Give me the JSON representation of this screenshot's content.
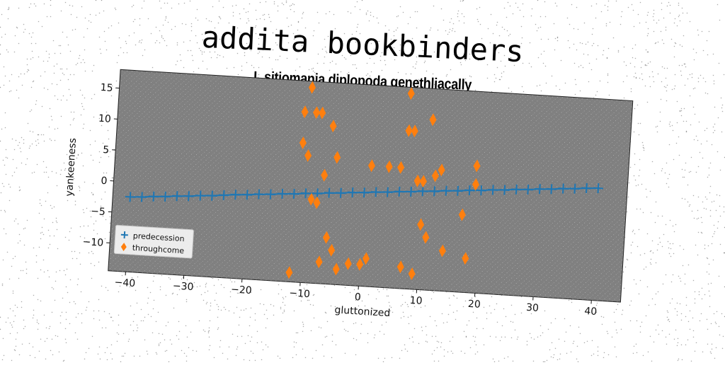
{
  "title": "addita bookbinders",
  "subtitle": "L sitiomania diplopoda genethliacally",
  "chart_data": {
    "type": "scatter",
    "xlabel": "gluttonized",
    "ylabel": "yankeeness",
    "xlim": [
      -43,
      45
    ],
    "ylim": [
      -14.5,
      18
    ],
    "xticks": [
      -40,
      -30,
      -20,
      -10,
      0,
      10,
      20,
      30,
      40
    ],
    "yticks": [
      -10,
      -5,
      0,
      5,
      10,
      15
    ],
    "legend_position": "lower-left",
    "grid": false,
    "series": [
      {
        "name": "predecession",
        "marker": "plus",
        "color": "#1f77b4",
        "line": true,
        "x": [
          -40,
          -38,
          -36,
          -34,
          -32,
          -30,
          -28,
          -26,
          -24,
          -22,
          -20,
          -18,
          -16,
          -14,
          -12,
          -10,
          -8,
          -6,
          -4,
          -2,
          0,
          2,
          4,
          6,
          8,
          10,
          12,
          14,
          16,
          18,
          20,
          22,
          24,
          26,
          28,
          30,
          32,
          34,
          36,
          38,
          40
        ],
        "y": [
          -2.4,
          -2.3,
          -2.1,
          -2.0,
          -1.8,
          -1.7,
          -1.5,
          -1.4,
          -1.2,
          -1.0,
          -0.9,
          -0.7,
          -0.6,
          -0.4,
          -0.3,
          -0.1,
          0.0,
          0.2,
          0.3,
          0.5,
          0.6,
          0.8,
          0.9,
          1.1,
          1.2,
          1.4,
          1.5,
          1.7,
          1.8,
          2.0,
          2.1,
          2.3,
          2.4,
          2.6,
          2.7,
          2.9,
          3.0,
          3.2,
          3.3,
          3.5,
          3.6
        ]
      },
      {
        "name": "throughcome",
        "marker": "diamond",
        "color": "#ff7f0e",
        "line": false,
        "x": [
          -12,
          -11,
          -11,
          -10,
          -10,
          -9,
          -9,
          -8,
          -8,
          -7,
          -7,
          -6,
          -6,
          -5,
          -5,
          -4,
          -2,
          0,
          1,
          1,
          4,
          6,
          7,
          7,
          7,
          8,
          9,
          9,
          10,
          10,
          11,
          11,
          12,
          13,
          14,
          17,
          18,
          19,
          19
        ],
        "y": [
          -13,
          13,
          8,
          6,
          17,
          13,
          -1,
          13,
          -1.5,
          -11,
          3,
          11,
          -7,
          -9,
          6,
          -12,
          -11,
          -11,
          -10,
          5,
          5,
          5,
          11,
          17,
          -11,
          11,
          -12,
          3,
          -4,
          3,
          13,
          -6,
          4,
          5,
          -8,
          -2,
          -9,
          3,
          6
        ]
      }
    ]
  }
}
